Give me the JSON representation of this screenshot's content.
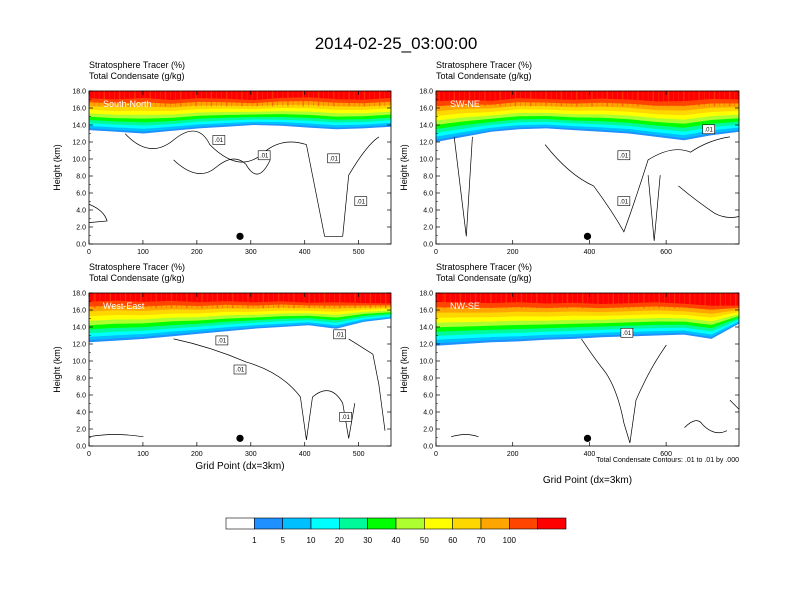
{
  "chart_data": {
    "type": "heatmap",
    "title": "2014-02-25_03:00:00",
    "colorbar": {
      "colors": [
        "#ffffff",
        "#1e90ff",
        "#00bfff",
        "#00ffff",
        "#00fa9a",
        "#00ff00",
        "#adff2f",
        "#ffff00",
        "#ffd700",
        "#ffa500",
        "#ff4500",
        "#ff0000"
      ],
      "labels": [
        "1",
        "5",
        "10",
        "20",
        "30",
        "40",
        "50",
        "60",
        "70",
        "100"
      ]
    },
    "footer_note": "Total Condensate Contours: .01 to .01 by .000",
    "panels": [
      {
        "tag": "South-North",
        "header1": "Stratosphere Tracer   (%)",
        "header2": "Total Condensate   (g/kg)",
        "ylabel": "Height (km)",
        "xlabel": "",
        "xlim": [
          0,
          560
        ],
        "xticks": [
          0,
          100,
          200,
          300,
          400,
          500
        ],
        "ylim": [
          0,
          18
        ],
        "yticks": [
          "0.0",
          "2.0",
          "4.0",
          "6.0",
          "8.0",
          "10.0",
          "12.0",
          "14.0",
          "16.0",
          "18.0"
        ],
        "marker_x": 280,
        "contour_labels": [
          ".01",
          ".01",
          ".01",
          ".01"
        ],
        "band_top_km": [
          17.6,
          17.5,
          17.7,
          17.4,
          17.6,
          17.5,
          17.3,
          17.6,
          17.7,
          17.5,
          17.4,
          17.6
        ],
        "band_bottom_km": [
          13.4,
          13.2,
          13.0,
          13.3,
          13.6,
          13.8,
          14.0,
          13.9,
          13.7,
          13.5,
          13.6,
          13.8
        ]
      },
      {
        "tag": "SW-NE",
        "header1": "Stratosphere Tracer   (%)",
        "header2": "Total Condensate   (g/kg)",
        "ylabel": "Height (km)",
        "xlabel": "",
        "xlim": [
          0,
          790
        ],
        "xticks": [
          0,
          200,
          400,
          600
        ],
        "ylim": [
          0,
          18
        ],
        "yticks": [
          "0.0",
          "2.0",
          "4.0",
          "6.0",
          "8.0",
          "10.0",
          "12.0",
          "14.0",
          "16.0",
          "18.0"
        ],
        "marker_x": 395,
        "contour_labels": [
          ".01",
          ".01",
          ".01"
        ],
        "band_top_km": [
          17.4,
          17.5,
          17.3,
          17.6,
          17.5,
          17.4,
          17.6,
          17.5,
          17.3,
          17.4,
          17.6,
          17.5
        ],
        "band_bottom_km": [
          12.0,
          12.6,
          13.2,
          13.5,
          13.6,
          13.4,
          13.2,
          13.0,
          12.6,
          12.2,
          12.8,
          13.2
        ]
      },
      {
        "tag": "West-East",
        "header1": "Stratosphere Tracer   (%)",
        "header2": "Total Condensate   (g/kg)",
        "ylabel": "Height (km)",
        "xlabel": "Grid Point (dx=3km)",
        "xlim": [
          0,
          560
        ],
        "xticks": [
          0,
          100,
          200,
          300,
          400,
          500
        ],
        "ylim": [
          0,
          18
        ],
        "yticks": [
          "0.0",
          "2.0",
          "4.0",
          "6.0",
          "8.0",
          "10.0",
          "12.0",
          "14.0",
          "16.0",
          "18.0"
        ],
        "marker_x": 280,
        "contour_labels": [
          ".01",
          ".01",
          ".01",
          ".01"
        ],
        "band_top_km": [
          17.6,
          17.7,
          17.5,
          17.6,
          17.4,
          17.5,
          17.3,
          17.4,
          17.2,
          17.3,
          17.1,
          17.0
        ],
        "band_bottom_km": [
          12.2,
          12.4,
          12.6,
          12.9,
          13.2,
          13.5,
          13.8,
          14.0,
          14.2,
          13.8,
          14.6,
          15.0
        ]
      },
      {
        "tag": "NW-SE",
        "header1": "Stratosphere Tracer   (%)",
        "header2": "Total Condensate   (g/kg)",
        "ylabel": "Height (km)",
        "xlabel": "Grid Point (dx=3km)",
        "xlim": [
          0,
          790
        ],
        "xticks": [
          0,
          200,
          400,
          600
        ],
        "ylim": [
          0,
          18
        ],
        "yticks": [
          "0.0",
          "2.0",
          "4.0",
          "6.0",
          "8.0",
          "10.0",
          "12.0",
          "14.0",
          "16.0",
          "18.0"
        ],
        "marker_x": 395,
        "contour_labels": [
          ".01"
        ],
        "band_top_km": [
          17.6,
          17.5,
          17.4,
          17.5,
          17.3,
          17.4,
          17.2,
          17.3,
          17.4,
          17.2,
          17.0,
          16.8
        ],
        "band_bottom_km": [
          11.8,
          12.0,
          12.2,
          12.3,
          12.5,
          12.6,
          12.8,
          12.9,
          13.0,
          13.1,
          12.6,
          14.4
        ]
      }
    ]
  }
}
